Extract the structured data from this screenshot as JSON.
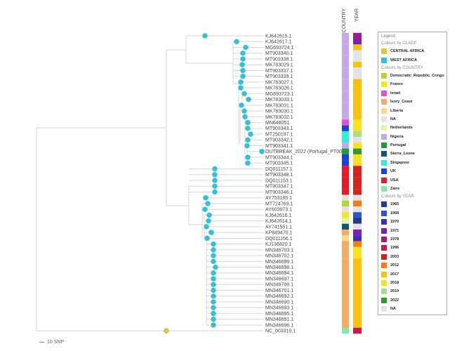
{
  "headers": {
    "country": "COUNTRY",
    "year": "YEAR"
  },
  "scale_label": "10 SNP",
  "leaves": [
    {
      "name": "KJ642615.1",
      "clade": "WEST AFRICA",
      "country": "Nigeria",
      "year": "1978"
    },
    {
      "name": "KJ642617.1",
      "clade": "WEST AFRICA",
      "country": "Nigeria",
      "year": "1971"
    },
    {
      "name": "MG693724.1",
      "clade": "WEST AFRICA",
      "country": "Nigeria",
      "year": "2017"
    },
    {
      "name": "MT903340.1",
      "clade": "WEST AFRICA",
      "country": "Nigeria",
      "year": "NA"
    },
    {
      "name": "MT903338.1",
      "clade": "WEST AFRICA",
      "country": "Nigeria",
      "year": "NA"
    },
    {
      "name": "MK783029.1",
      "clade": "WEST AFRICA",
      "country": "Nigeria",
      "year": "2017"
    },
    {
      "name": "MT903337.1",
      "clade": "WEST AFRICA",
      "country": "Nigeria",
      "year": "NA"
    },
    {
      "name": "MT903339.1",
      "clade": "WEST AFRICA",
      "country": "Nigeria",
      "year": "NA"
    },
    {
      "name": "MK783027.1",
      "clade": "WEST AFRICA",
      "country": "Nigeria",
      "year": "2017"
    },
    {
      "name": "MK783028.1",
      "clade": "WEST AFRICA",
      "country": "Nigeria",
      "year": "2017"
    },
    {
      "name": "MG693723.1",
      "clade": "WEST AFRICA",
      "country": "Nigeria",
      "year": "2017"
    },
    {
      "name": "MK783033.1",
      "clade": "WEST AFRICA",
      "country": "Nigeria",
      "year": "2017"
    },
    {
      "name": "MK783031.1",
      "clade": "WEST AFRICA",
      "country": "Nigeria",
      "year": "2017"
    },
    {
      "name": "MK783030.1",
      "clade": "WEST AFRICA",
      "country": "Nigeria",
      "year": "2017"
    },
    {
      "name": "MK783032.1",
      "clade": "WEST AFRICA",
      "country": "Nigeria",
      "year": "2017"
    },
    {
      "name": "MN648051",
      "clade": "WEST AFRICA",
      "country": "Israel",
      "year": "2018"
    },
    {
      "name": "MT903343.1",
      "clade": "WEST AFRICA",
      "country": "UK",
      "year": "2018"
    },
    {
      "name": "MT250197.1",
      "clade": "WEST AFRICA",
      "country": "Singapore",
      "year": "2019"
    },
    {
      "name": "MT903342.1",
      "clade": "WEST AFRICA",
      "country": "Singapore",
      "year": "NA"
    },
    {
      "name": "MT903341.1",
      "clade": "WEST AFRICA",
      "country": "Nigeria",
      "year": "2018"
    },
    {
      "name": "OUTBREAK_2022 (Portugal_PT0001)",
      "clade": "WEST AFRICA",
      "country": "Portugal",
      "year": "2022"
    },
    {
      "name": "MT903344.1",
      "clade": "WEST AFRICA",
      "country": "UK",
      "year": "2018"
    },
    {
      "name": "MT903345.1",
      "clade": "WEST AFRICA",
      "country": "UK",
      "year": "2018"
    },
    {
      "name": "DQ011157.1",
      "clade": "WEST AFRICA",
      "country": "USA",
      "year": "2003"
    },
    {
      "name": "MT903348.1",
      "clade": "WEST AFRICA",
      "country": "USA",
      "year": "2003"
    },
    {
      "name": "DQ011153.1",
      "clade": "WEST AFRICA",
      "country": "USA",
      "year": "2003"
    },
    {
      "name": "MT903347.1",
      "clade": "WEST AFRICA",
      "country": "USA",
      "year": "2003"
    },
    {
      "name": "MT903346.1",
      "clade": "WEST AFRICA",
      "country": "USA",
      "year": "2003"
    },
    {
      "name": "AY753185.1",
      "clade": "WEST AFRICA",
      "country": "NA",
      "year": "NA"
    },
    {
      "name": "MT724769.1",
      "clade": "WEST AFRICA",
      "country": "Democratic_Republic_Congo",
      "year": "2012"
    },
    {
      "name": "AY603973.1",
      "clade": "WEST AFRICA",
      "country": "NA",
      "year": "NA"
    },
    {
      "name": "KJ642616.1",
      "clade": "WEST AFRICA",
      "country": "France",
      "year": "1968"
    },
    {
      "name": "KJ642614.1",
      "clade": "WEST AFRICA",
      "country": "Netherlands",
      "year": "1965"
    },
    {
      "name": "AY741551.1",
      "clade": "WEST AFRICA",
      "country": "Sierra_Leone",
      "year": "NA"
    },
    {
      "name": "KP849470.1",
      "clade": "WEST AFRICA",
      "country": "Ivory_Coast",
      "year": "1971"
    },
    {
      "name": "DQ011156.1",
      "clade": "WEST AFRICA",
      "country": "Liberia",
      "year": "1970"
    },
    {
      "name": "KJ136820.1",
      "clade": "WEST AFRICA",
      "country": "Ivory_Coast",
      "year": "2012"
    },
    {
      "name": "MN346703.1",
      "clade": "WEST AFRICA",
      "country": "Ivory_Coast",
      "year": "2018"
    },
    {
      "name": "MN346702.1",
      "clade": "WEST AFRICA",
      "country": "Ivory_Coast",
      "year": "2018"
    },
    {
      "name": "MN346699.1",
      "clade": "WEST AFRICA",
      "country": "Ivory_Coast",
      "year": "2017"
    },
    {
      "name": "MN346698.1",
      "clade": "WEST AFRICA",
      "country": "Ivory_Coast",
      "year": "2017"
    },
    {
      "name": "MN346694.1",
      "clade": "WEST AFRICA",
      "country": "Ivory_Coast",
      "year": "2017"
    },
    {
      "name": "MN346697.1",
      "clade": "WEST AFRICA",
      "country": "Ivory_Coast",
      "year": "2017"
    },
    {
      "name": "MN346700.1",
      "clade": "WEST AFRICA",
      "country": "Ivory_Coast",
      "year": "2017"
    },
    {
      "name": "MN346701.1",
      "clade": "WEST AFRICA",
      "country": "Ivory_Coast",
      "year": "2017"
    },
    {
      "name": "MN346692.1",
      "clade": "WEST AFRICA",
      "country": "Ivory_Coast",
      "year": "2017"
    },
    {
      "name": "MN346690.1",
      "clade": "WEST AFRICA",
      "country": "Ivory_Coast",
      "year": "2017"
    },
    {
      "name": "MN346693.1",
      "clade": "WEST AFRICA",
      "country": "Ivory_Coast",
      "year": "2017"
    },
    {
      "name": "MN346695.1",
      "clade": "WEST AFRICA",
      "country": "Ivory_Coast",
      "year": "2017"
    },
    {
      "name": "MN346691.1",
      "clade": "WEST AFRICA",
      "country": "Ivory_Coast",
      "year": "2017"
    },
    {
      "name": "MN346696.1",
      "clade": "WEST AFRICA",
      "country": "Ivory_Coast",
      "year": "2017"
    },
    {
      "name": "NC_003310.1",
      "clade": "CENTRAL AFRICA",
      "country": "Zaire",
      "year": "1996"
    }
  ],
  "legend": {
    "title": "Legend",
    "sections": [
      {
        "title": "Colours by CLADE",
        "items": [
          {
            "label": "CENTRAL AFRICA",
            "color": "#e6c33c"
          },
          {
            "label": "WEST AFRICA",
            "color": "#2bc4df"
          }
        ]
      },
      {
        "title": "Colours by COUNTRY",
        "items": [
          {
            "label": "Democratic_Republic_Congo",
            "color": "#b7d435"
          },
          {
            "label": "France",
            "color": "#f8e61d"
          },
          {
            "label": "Israel",
            "color": "#e64fd4"
          },
          {
            "label": "Ivory_Coast",
            "color": "#f8aa60"
          },
          {
            "label": "Liberia",
            "color": "#fbd98c"
          },
          {
            "label": "NA",
            "color": "#e3e3e3"
          },
          {
            "label": "Netherlands",
            "color": "#e4f59c"
          },
          {
            "label": "Nigeria",
            "color": "#c4a9ea"
          },
          {
            "label": "Portugal",
            "color": "#1e9a3b"
          },
          {
            "label": "Sierra_Leone",
            "color": "#155081"
          },
          {
            "label": "Singapore",
            "color": "#2eeedb"
          },
          {
            "label": "UK",
            "color": "#1b3fe0"
          },
          {
            "label": "USA",
            "color": "#ee1626"
          },
          {
            "label": "Zaire",
            "color": "#80eba6"
          }
        ]
      },
      {
        "title": "Colours by YEAR",
        "items": [
          {
            "label": "1965",
            "color": "#1f3b8c"
          },
          {
            "label": "1968",
            "color": "#2c55c9"
          },
          {
            "label": "1970",
            "color": "#3c2cc0"
          },
          {
            "label": "1971",
            "color": "#7a1fb4"
          },
          {
            "label": "1978",
            "color": "#a1188f"
          },
          {
            "label": "1996",
            "color": "#c8194f"
          },
          {
            "label": "2003",
            "color": "#d62121"
          },
          {
            "label": "2012",
            "color": "#f57c16"
          },
          {
            "label": "2017",
            "color": "#f8c10e"
          },
          {
            "label": "2018",
            "color": "#f9e21b"
          },
          {
            "label": "2019",
            "color": "#a8de8b"
          },
          {
            "label": "2022",
            "color": "#2f9a30"
          },
          {
            "label": "NA",
            "color": "#e3e3e3"
          }
        ]
      }
    ]
  }
}
